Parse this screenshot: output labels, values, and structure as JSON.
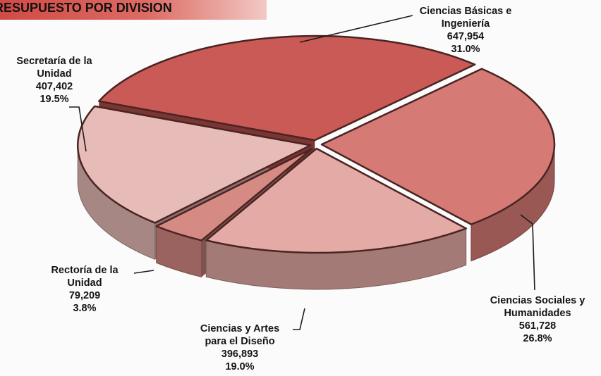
{
  "colors": {
    "title_band": "#d24a45",
    "slice_cbi": "#c95a55",
    "slice_csh": "#d57a74",
    "slice_cad": "#e4aaa5",
    "slice_rect": "#d68a84",
    "slice_sec": "#e7bcb8"
  },
  "chart_data": {
    "type": "pie",
    "title": "RESUPUESTO POR DIVISION",
    "style": "3d-exploded",
    "slices": [
      {
        "key": "cbi",
        "name_lines": [
          "Ciencias Básicas e",
          "Ingeniería"
        ],
        "value": 647954,
        "value_label": "647,954",
        "percent": 31.0,
        "percent_label": "31.0%"
      },
      {
        "key": "csh",
        "name_lines": [
          "Ciencias Sociales y",
          "Humanidades"
        ],
        "value": 561728,
        "value_label": "561,728",
        "percent": 26.8,
        "percent_label": "26.8%"
      },
      {
        "key": "cad",
        "name_lines": [
          "Ciencias y Artes",
          "para el Diseño"
        ],
        "value": 396893,
        "value_label": "396,893",
        "percent": 19.0,
        "percent_label": "19.0%"
      },
      {
        "key": "rect",
        "name_lines": [
          "Rectoría de la",
          "Unidad"
        ],
        "value": 79209,
        "value_label": "79,209",
        "percent": 3.8,
        "percent_label": "3.8%"
      },
      {
        "key": "sec",
        "name_lines": [
          "Secretaría de la",
          "Unidad"
        ],
        "value": 407402,
        "value_label": "407,402",
        "percent": 19.5,
        "percent_label": "19.5%"
      }
    ]
  }
}
